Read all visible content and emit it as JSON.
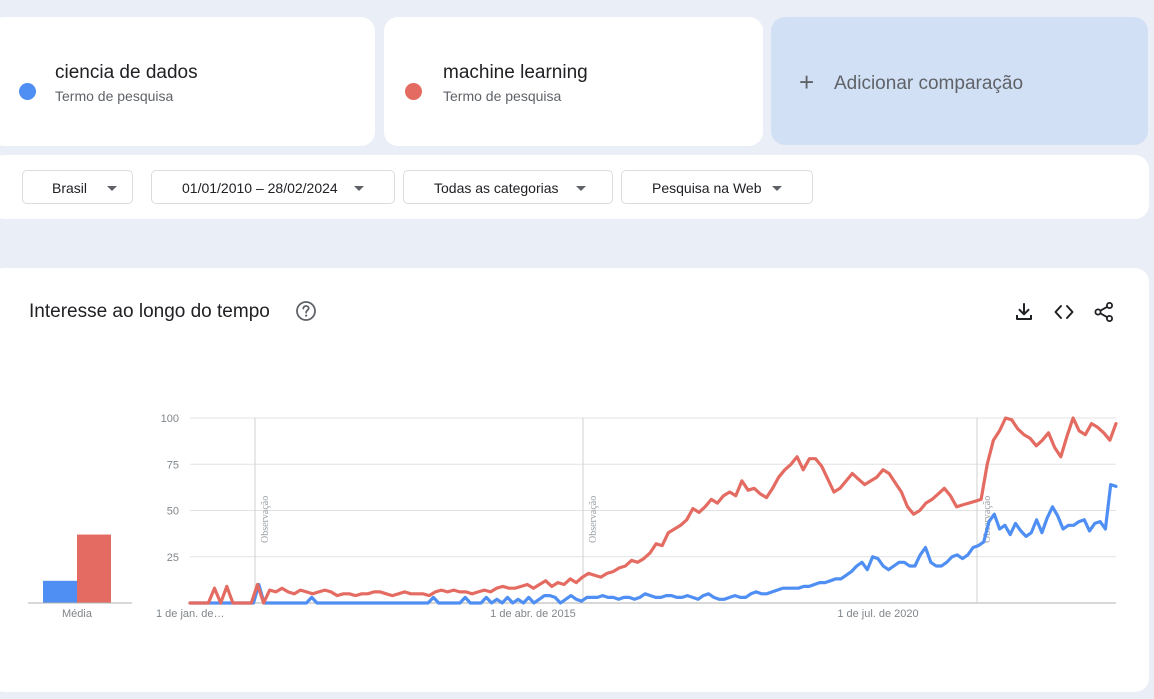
{
  "terms": [
    {
      "name": "ciencia de dados",
      "subtitle": "Termo de pesquisa",
      "color": "#4f8ff3"
    },
    {
      "name": "machine learning",
      "subtitle": "Termo de pesquisa",
      "color": "#e46b61"
    }
  ],
  "add_comparison": {
    "icon": "plus-icon",
    "label": "Adicionar comparação"
  },
  "filters": {
    "region": "Brasil",
    "date_range": "01/01/2010 – 28/02/2024",
    "category": "Todas as categorias",
    "search_type": "Pesquisa na Web"
  },
  "chart_section": {
    "title": "Interesse ao longo do tempo",
    "icons": [
      "help-icon",
      "download-icon",
      "embed-code-icon",
      "share-icon"
    ]
  },
  "chart_data": {
    "type": "line",
    "y_ticks": [
      100,
      75,
      50,
      25
    ],
    "ylim": [
      0,
      100
    ],
    "x_tick_labels": [
      "1 de jan. de…",
      "1 de abr. de 2015",
      "1 de jul. de 2020"
    ],
    "average_label": "Média",
    "averages": [
      {
        "series": "ciencia de dados",
        "value": 12
      },
      {
        "series": "machine learning",
        "value": 37
      }
    ],
    "annotations": [
      "Observação",
      "Observação",
      "Observação"
    ],
    "series": [
      {
        "name": "ciencia de dados",
        "color": "#4f8ff3",
        "values": [
          0,
          0,
          0,
          0,
          0,
          0,
          0,
          0,
          0,
          0,
          0,
          0,
          0,
          10,
          0,
          0,
          0,
          0,
          0,
          0,
          0,
          0,
          0,
          3,
          0,
          0,
          0,
          0,
          0,
          0,
          0,
          0,
          0,
          0,
          0,
          0,
          0,
          0,
          0,
          0,
          0,
          0,
          0,
          0,
          0,
          0,
          3,
          0,
          0,
          0,
          0,
          0,
          3,
          0,
          0,
          0,
          3,
          0,
          2,
          0,
          3,
          0,
          2,
          0,
          3,
          0,
          2,
          4,
          4,
          3,
          0,
          2,
          4,
          2,
          1,
          3,
          3,
          3,
          4,
          3,
          3,
          2,
          3,
          3,
          2,
          3,
          5,
          4,
          3,
          3,
          4,
          4,
          3,
          3,
          4,
          3,
          2,
          4,
          5,
          3,
          2,
          2,
          3,
          4,
          3,
          3,
          5,
          6,
          5,
          5,
          6,
          7,
          8,
          8,
          8,
          8,
          9,
          9,
          10,
          11,
          11,
          12,
          13,
          13,
          15,
          17,
          20,
          22,
          18,
          25,
          24,
          20,
          18,
          20,
          22,
          22,
          20,
          20,
          26,
          30,
          22,
          20,
          20,
          22,
          25,
          26,
          24,
          26,
          30,
          31,
          33,
          44,
          48,
          40,
          42,
          37,
          43,
          39,
          36,
          38,
          45,
          38,
          46,
          52,
          47,
          40,
          42,
          42,
          44,
          45,
          39,
          43,
          44,
          40,
          64,
          63
        ]
      },
      {
        "name": "machine learning",
        "color": "#e46b61",
        "values": [
          0,
          0,
          0,
          0,
          8,
          0,
          9,
          0,
          0,
          0,
          0,
          10,
          0,
          7,
          6,
          8,
          6,
          5,
          7,
          6,
          5,
          6,
          7,
          6,
          4,
          5,
          5,
          4,
          5,
          5,
          6,
          6,
          5,
          4,
          5,
          6,
          5,
          5,
          5,
          4,
          6,
          7,
          6,
          7,
          6,
          6,
          5,
          6,
          7,
          6,
          8,
          9,
          8,
          8,
          9,
          10,
          8,
          10,
          12,
          9,
          11,
          10,
          13,
          11,
          14,
          16,
          15,
          14,
          16,
          17,
          19,
          20,
          23,
          22,
          24,
          27,
          32,
          31,
          38,
          40,
          42,
          45,
          51,
          49,
          52,
          56,
          54,
          58,
          60,
          58,
          66,
          61,
          62,
          59,
          57,
          62,
          68,
          72,
          75,
          79,
          72,
          78,
          78,
          74,
          67,
          60,
          62,
          66,
          70,
          67,
          64,
          66,
          68,
          72,
          70,
          65,
          60,
          52,
          48,
          50,
          54,
          56,
          59,
          62,
          58,
          52,
          53,
          54,
          55,
          56,
          75,
          88,
          93,
          100,
          99,
          94,
          91,
          89,
          85,
          88,
          92,
          84,
          79,
          90,
          100,
          93,
          91,
          97,
          95,
          92,
          88,
          97
        ]
      }
    ]
  }
}
